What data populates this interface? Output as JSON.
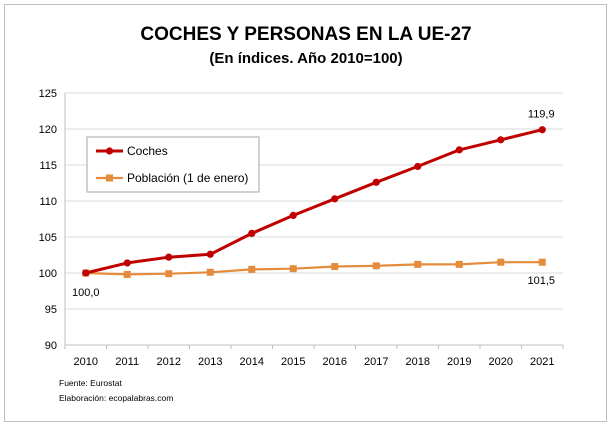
{
  "chart_data": {
    "type": "line",
    "title": "COCHES Y PERSONAS EN LA UE-27",
    "subtitle": "(En índices. Año 2010=100)",
    "xlabel": "",
    "ylabel": "",
    "categories": [
      "2010",
      "2011",
      "2012",
      "2013",
      "2014",
      "2015",
      "2016",
      "2017",
      "2018",
      "2019",
      "2020",
      "2021"
    ],
    "ylim": [
      90,
      125
    ],
    "yticks": [
      90,
      95,
      100,
      105,
      110,
      115,
      120,
      125
    ],
    "grid": true,
    "legend_position": "upper-left",
    "series": [
      {
        "name": "Coches",
        "color": "#c00000",
        "marker": "circle",
        "values": [
          100.0,
          101.4,
          102.2,
          102.6,
          105.5,
          108.0,
          110.3,
          112.6,
          114.8,
          117.1,
          118.5,
          119.9
        ]
      },
      {
        "name": "Población (1 de enero)",
        "color": "#e58c3c",
        "marker": "square",
        "values": [
          100.0,
          99.8,
          99.9,
          100.1,
          100.5,
          100.6,
          100.9,
          101.0,
          101.2,
          101.2,
          101.5,
          101.5
        ]
      }
    ],
    "annotations": [
      {
        "text": "119,9",
        "series": "Coches",
        "category": "2021"
      },
      {
        "text": "100,0",
        "series": "Coches",
        "category": "2010"
      },
      {
        "text": "101,5",
        "series": "Población (1 de enero)",
        "category": "2021"
      }
    ]
  },
  "footer": {
    "source": "Fuente: Eurostat",
    "credit": "Elaboración: ecopalabras.com"
  }
}
